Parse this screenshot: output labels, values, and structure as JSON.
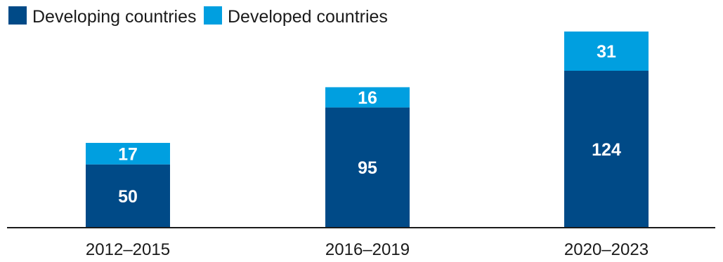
{
  "chart_data": {
    "type": "bar",
    "stacked": true,
    "categories": [
      "2012–2015",
      "2016–2019",
      "2020–2023"
    ],
    "series": [
      {
        "name": "Developing countries",
        "values": [
          50,
          95,
          124
        ],
        "color": "#004a87"
      },
      {
        "name": "Developed countries",
        "values": [
          17,
          16,
          31
        ],
        "color": "#009fe0"
      }
    ],
    "ylim": [
      0,
      155
    ],
    "grid": false,
    "legend_position": "top-left",
    "title": "",
    "xlabel": "",
    "ylabel": ""
  }
}
